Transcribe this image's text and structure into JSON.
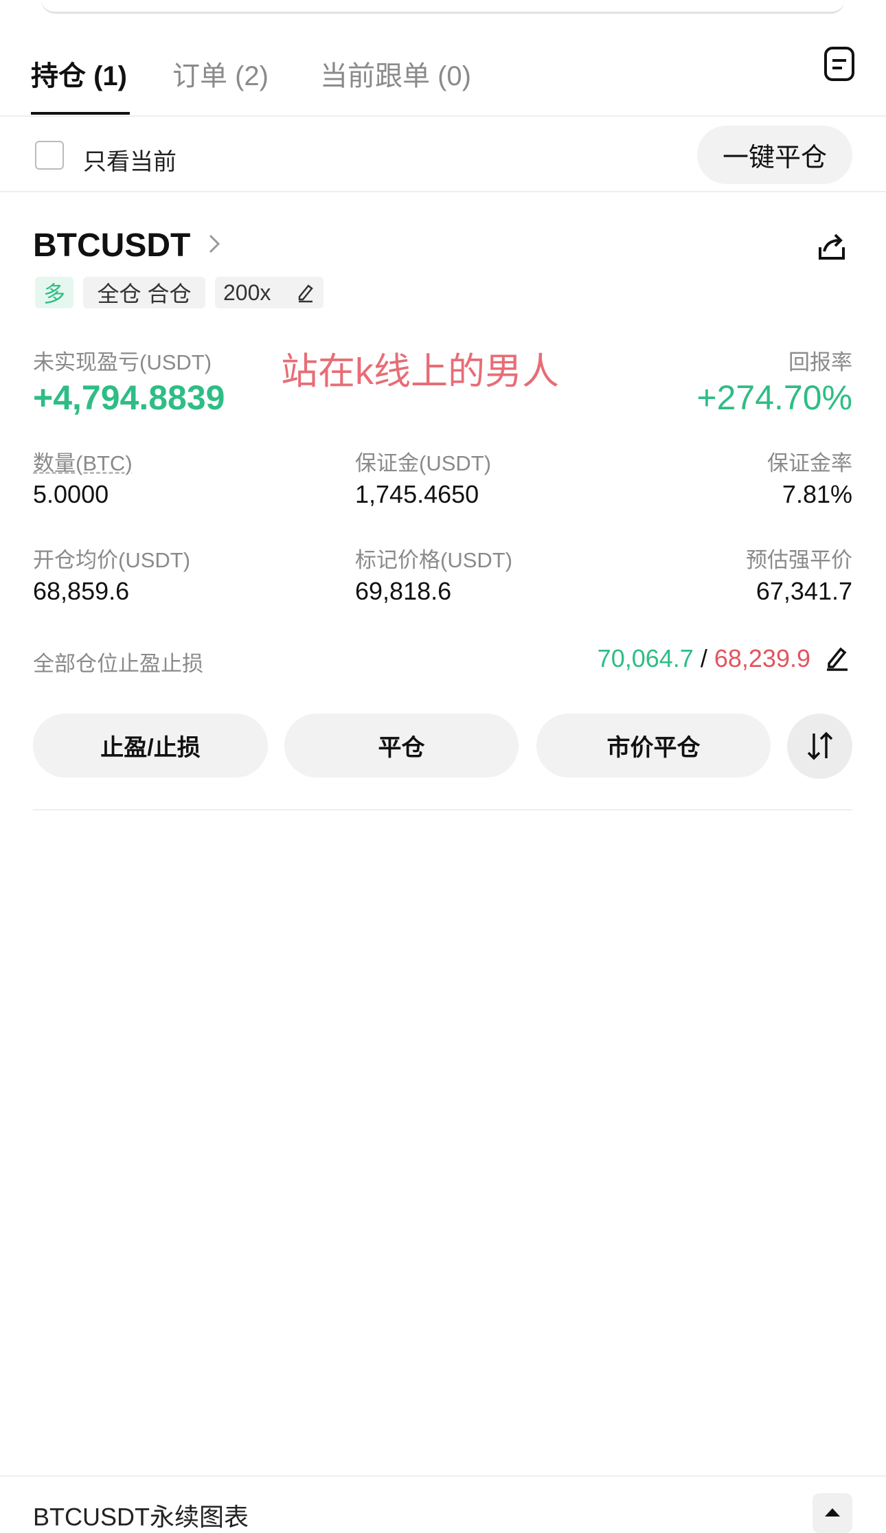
{
  "tabs": [
    "持仓 (1)",
    "订单 (2)",
    "当前跟单 (0)"
  ],
  "filter": {
    "label": "只看当前",
    "button": "一键平仓"
  },
  "position": {
    "symbol": "BTCUSDT",
    "tags": [
      "多",
      "全仓 合仓",
      "200x"
    ],
    "annotation": "站在k线上的男人",
    "pnl": {
      "label": "未实现盈亏(USDT)",
      "value": "+4,794.8839"
    },
    "roi": {
      "label": "回报率",
      "value": "+274.70%"
    },
    "fields": [
      {
        "label": "数量(BTC)",
        "value": "5.0000"
      },
      {
        "label": "保证金(USDT)",
        "value": "1,745.4650"
      },
      {
        "label": "保证金率",
        "value": "7.81%"
      },
      {
        "label": "开仓均价(USDT)",
        "value": "68,859.6"
      },
      {
        "label": "标记价格(USDT)",
        "value": "69,818.6"
      },
      {
        "label": "预估强平价",
        "value": "67,341.7"
      }
    ],
    "tpsl": {
      "label": "全部仓位止盈止损",
      "take_profit": "70,064.7",
      "separator": "/",
      "stop_loss": "68,239.9"
    },
    "buttons": [
      "止盈/止损",
      "平仓",
      "市价平仓"
    ]
  },
  "footer": {
    "title": "BTCUSDT永续图表"
  }
}
